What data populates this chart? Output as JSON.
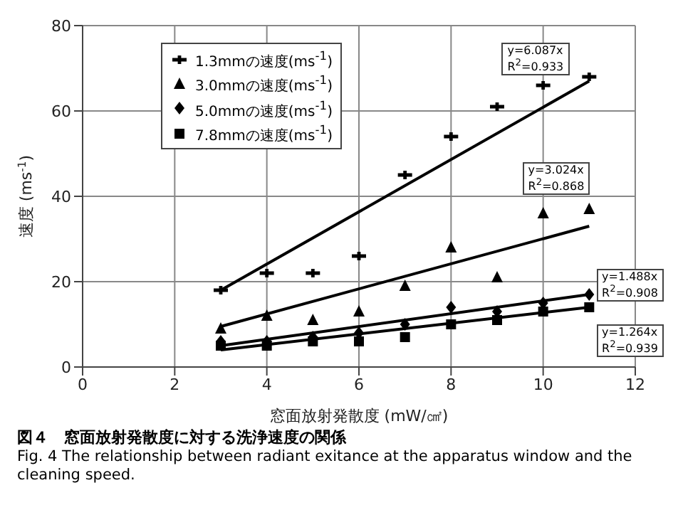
{
  "chart_data": {
    "type": "scatter",
    "title": "図４　窓面放射発散度に対する洗浄速度の関係",
    "subtitle": "Fig. 4  The relationship between radiant exitance at the apparatus window and the cleaning speed.",
    "xlabel": "窓面放射発散度 (mW/㎠)",
    "ylabel": "速度 (ms$^{-1}$)",
    "xlim": [
      0,
      12
    ],
    "xticks": [
      0,
      2,
      4,
      6,
      8,
      10,
      12
    ],
    "ylim": [
      0,
      80
    ],
    "yticks": [
      0,
      20,
      40,
      60,
      80
    ],
    "grid": true,
    "legend": "top left",
    "series": [
      {
        "name": "1.3mmの速度(ms$^{-1}$)",
        "marker": "cross",
        "color": "#000000",
        "x": [
          3,
          4,
          5,
          6,
          7,
          8,
          9,
          10,
          11
        ],
        "values": [
          18,
          22,
          22,
          26,
          45,
          54,
          61,
          66,
          68
        ]
      },
      {
        "name": "3.0mmの速度(ms$^{-1}$)",
        "marker": "triangle",
        "color": "#000000",
        "x": [
          3,
          4,
          5,
          6,
          7,
          8,
          9,
          10,
          11
        ],
        "values": [
          9,
          12,
          11,
          13,
          19,
          28,
          21,
          36,
          37
        ]
      },
      {
        "name": "5.0mmの速度(ms$^{-1}$)",
        "marker": "diamond",
        "color": "#000000",
        "x": [
          3,
          4,
          5,
          6,
          7,
          8,
          9,
          10,
          11
        ],
        "values": [
          6,
          6,
          7,
          8,
          10,
          14,
          13,
          15,
          17
        ]
      },
      {
        "name": "7.8mmの速度(ms$^{-1}$)",
        "marker": "square",
        "color": "#000000",
        "x": [
          3,
          4,
          5,
          6,
          7,
          8,
          9,
          10,
          11
        ],
        "values": [
          5,
          5,
          6,
          6,
          7,
          10,
          11,
          13,
          14
        ]
      },
      {
        "type": "line",
        "color": "#000000",
        "x": [
          3,
          11
        ],
        "values": [
          18,
          67
        ]
      },
      {
        "type": "line",
        "color": "#000000",
        "x": [
          3,
          11
        ],
        "values": [
          9.5,
          33
        ]
      },
      {
        "type": "line",
        "color": "#000000",
        "x": [
          3,
          11
        ],
        "values": [
          5,
          17
        ]
      },
      {
        "type": "line",
        "color": "#000000",
        "x": [
          3,
          11
        ],
        "values": [
          4,
          14
        ]
      }
    ],
    "annotations": [
      "y=6.087x\nR$^{2}$=0.933",
      "y=3.024x\nR$^{2}$=0.868",
      "y=1.488x\nR$^{2}$=0.908",
      "y=1.264x\nR$^{2}$=0.939"
    ]
  }
}
